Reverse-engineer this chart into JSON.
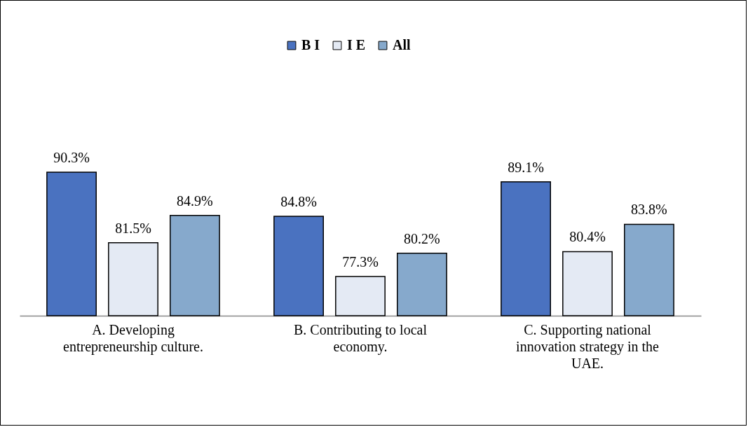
{
  "chart_data": {
    "type": "bar",
    "categories": [
      "A. Developing entrepreneurship culture.",
      "B. Contributing to local economy.",
      "C. Supporting national innovation strategy in the UAE."
    ],
    "series": [
      {
        "name": "B I",
        "color": "#4a72c0",
        "values": [
          90.3,
          84.8,
          89.1
        ],
        "value_labels": [
          "90.3%",
          "84.8%",
          "89.1%"
        ]
      },
      {
        "name": "I E",
        "color": "#e4eaf4",
        "values": [
          81.5,
          77.3,
          80.4
        ],
        "value_labels": [
          "81.5%",
          "77.3%",
          "80.4%"
        ]
      },
      {
        "name": "All",
        "color": "#86a9cc",
        "values": [
          84.9,
          80.2,
          83.8
        ],
        "value_labels": [
          "84.9%",
          "80.2%",
          "83.8%"
        ]
      }
    ],
    "ylim": [
      72.4,
      90.3
    ],
    "tick_labels": "x",
    "legend": "top"
  }
}
